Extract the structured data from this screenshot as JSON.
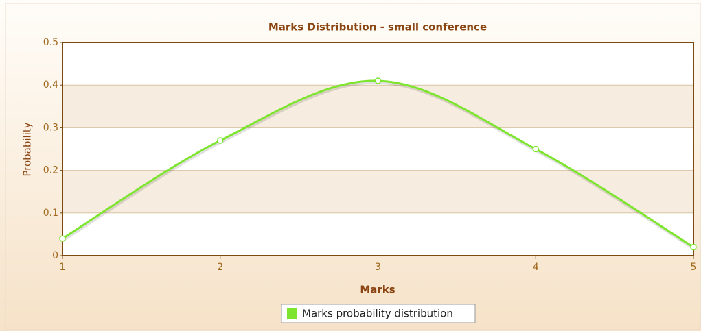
{
  "chart_data": {
    "type": "line",
    "title": "Marks Distribution - small conference",
    "x_label": "Marks",
    "y_label": "Probability",
    "x": [
      1,
      2,
      3,
      4,
      5
    ],
    "series": [
      {
        "name": "Marks probability distribution",
        "color": "#7ee52f",
        "values": [
          0.04,
          0.27,
          0.41,
          0.25,
          0.02
        ]
      }
    ],
    "xlim": [
      1,
      5
    ],
    "xticks": [
      1,
      2,
      3,
      4,
      5
    ],
    "ylim": [
      0,
      0.5
    ],
    "yticks": [
      0,
      0.1,
      0.2,
      0.3,
      0.4,
      0.5
    ],
    "grid": true,
    "legend": "bottom",
    "smooth": true
  }
}
